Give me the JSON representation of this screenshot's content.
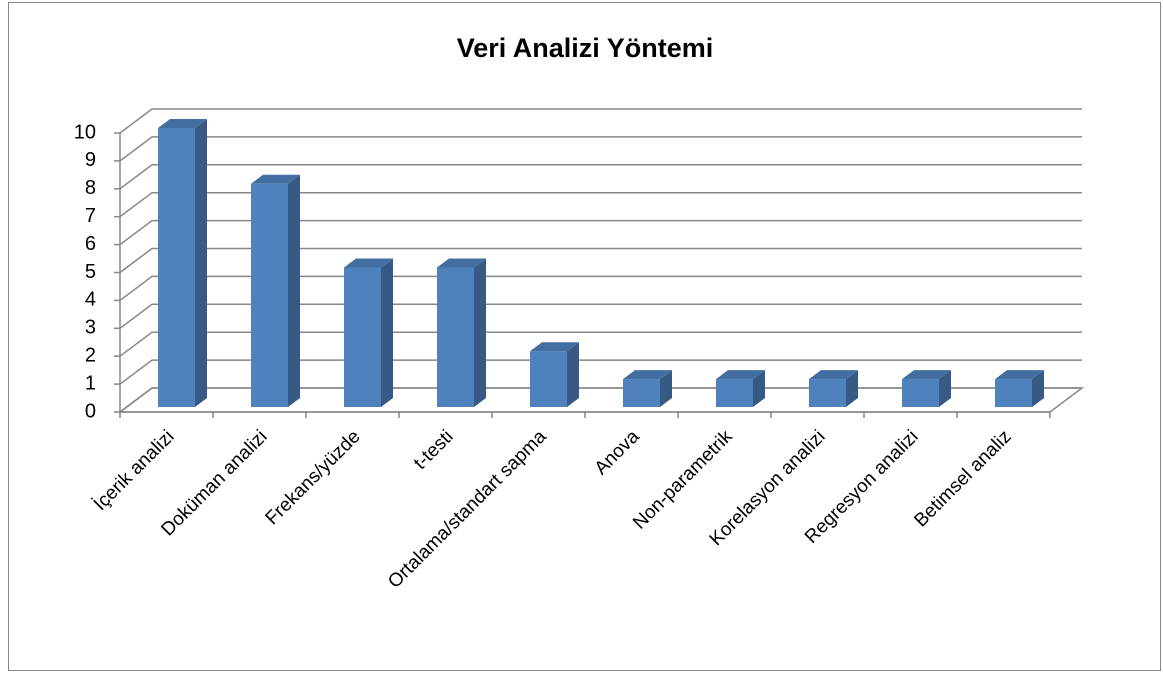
{
  "chart_data": {
    "type": "bar3d",
    "title": "Veri Analizi Yöntemi",
    "categories": [
      "İçerik analizi",
      "Doküman analizi",
      "Frekans/yüzde",
      "t-testi",
      "Ortalama/standart sapma",
      "Anova",
      "Non-parametrik",
      "Korelasyon analizi",
      "Regresyon analizi",
      "Betimsel analiz"
    ],
    "values": [
      10,
      8,
      5,
      5,
      2,
      1,
      1,
      1,
      1,
      1
    ],
    "color": "#4f81bd",
    "ylim": [
      0,
      10
    ],
    "yticks": [
      0,
      1,
      2,
      3,
      4,
      5,
      6,
      7,
      8,
      9,
      10
    ],
    "grid": true
  }
}
